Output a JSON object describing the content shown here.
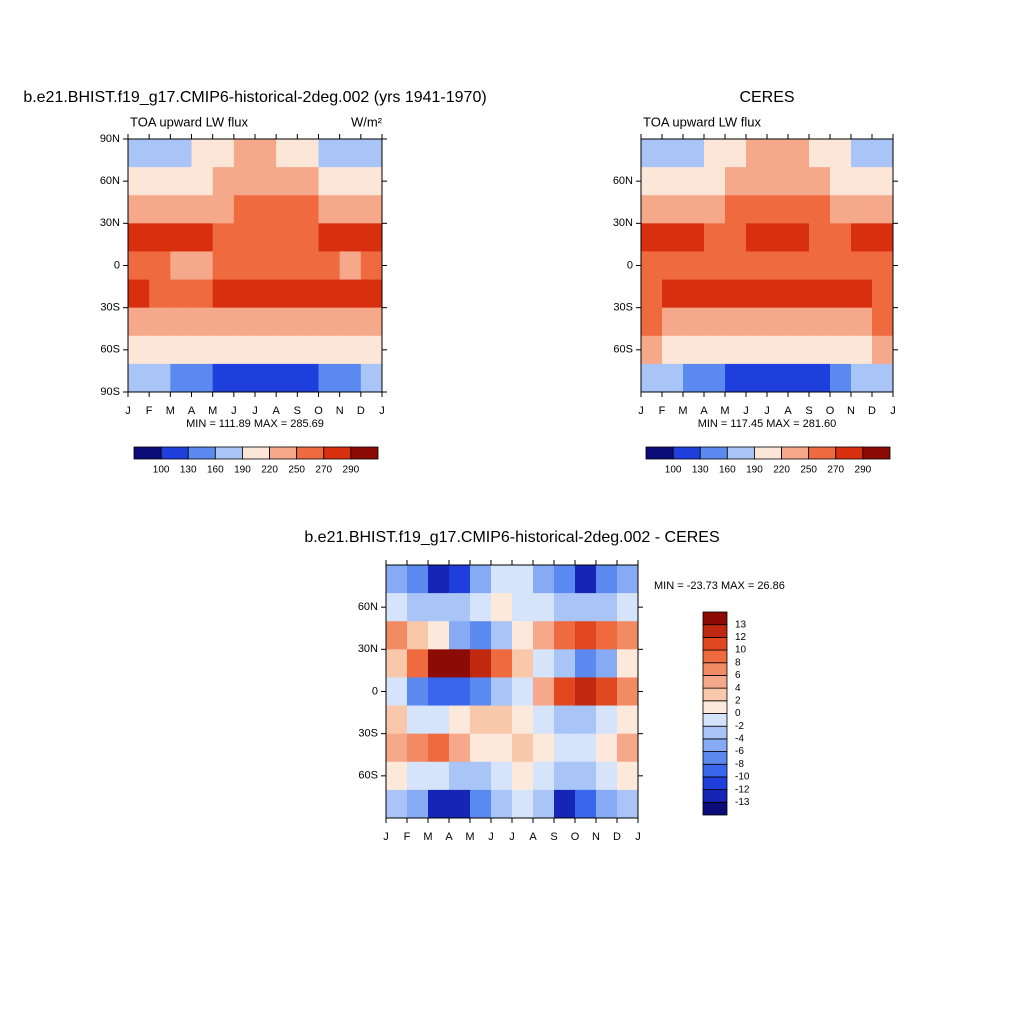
{
  "chart_data": [
    {
      "type": "heatmap",
      "title": "b.e21.BHIST.f19_g17.CMIP6-historical-2deg.002 (yrs 1941-1970)",
      "subtitle": "TOA upward LW flux",
      "units": "W/m²",
      "stats": "MIN = 111.89 MAX = 285.69",
      "categories": [
        "J",
        "F",
        "M",
        "A",
        "M",
        "J",
        "J",
        "A",
        "S",
        "O",
        "N",
        "D",
        "J"
      ],
      "y": [
        80,
        60,
        40,
        20,
        0,
        -20,
        -40,
        -60,
        -80
      ],
      "ylim": [
        -90,
        90
      ],
      "yticks": [
        {
          "value": 90,
          "label": "90N"
        },
        {
          "value": 60,
          "label": "60N"
        },
        {
          "value": 30,
          "label": "30N"
        },
        0,
        {
          "value": -30,
          "label": "30S"
        },
        {
          "value": -60,
          "label": "60S"
        },
        {
          "value": -90,
          "label": "90S"
        }
      ],
      "levels": [
        100,
        130,
        160,
        190,
        220,
        250,
        270,
        290
      ],
      "colors": [
        "#0b0b7a",
        "#1f3fdc",
        "#5a8af0",
        "#a9c4f7",
        "#fbe6d8",
        "#f6a98a",
        "#ef6b3f",
        "#d8300f",
        "#8c0c05"
      ],
      "colorbar": "horizontal",
      "values": [
        [
          165,
          160,
          175,
          195,
          210,
          220,
          220,
          215,
          200,
          185,
          170,
          165
        ],
        [
          190,
          190,
          200,
          210,
          225,
          235,
          235,
          230,
          220,
          205,
          195,
          190
        ],
        [
          225,
          225,
          230,
          235,
          245,
          255,
          260,
          258,
          250,
          240,
          232,
          228
        ],
        [
          275,
          285,
          283,
          275,
          265,
          262,
          262,
          265,
          268,
          270,
          272,
          272
        ],
        [
          250,
          255,
          245,
          245,
          250,
          255,
          255,
          258,
          255,
          250,
          248,
          250
        ],
        [
          270,
          265,
          262,
          268,
          275,
          282,
          285,
          285,
          280,
          275,
          272,
          270
        ],
        [
          245,
          243,
          240,
          238,
          236,
          235,
          236,
          238,
          240,
          242,
          244,
          245
        ],
        [
          215,
          210,
          205,
          200,
          195,
          190,
          190,
          192,
          196,
          200,
          206,
          212
        ],
        [
          180,
          170,
          150,
          130,
          118,
          113,
          112,
          115,
          120,
          135,
          155,
          172
        ]
      ]
    },
    {
      "type": "heatmap",
      "title": "CERES",
      "subtitle": "TOA upward LW flux",
      "stats": "MIN = 117.45 MAX = 281.60",
      "categories": [
        "J",
        "F",
        "M",
        "A",
        "M",
        "J",
        "J",
        "A",
        "S",
        "O",
        "N",
        "D",
        "J"
      ],
      "y": [
        80,
        60,
        40,
        20,
        0,
        -20,
        -40,
        -60,
        -80
      ],
      "ylim": [
        -90,
        90
      ],
      "yticks": [
        {
          "value": 60,
          "label": "60N"
        },
        {
          "value": 30,
          "label": "30N"
        },
        0,
        {
          "value": -30,
          "label": "30S"
        },
        {
          "value": -60,
          "label": "60S"
        }
      ],
      "levels": [
        100,
        130,
        160,
        190,
        220,
        250,
        270,
        290
      ],
      "colors": [
        "#0b0b7a",
        "#1f3fdc",
        "#5a8af0",
        "#a9c4f7",
        "#fbe6d8",
        "#f6a98a",
        "#ef6b3f",
        "#d8300f",
        "#8c0c05"
      ],
      "colorbar": "horizontal",
      "values": [
        [
          175,
          175,
          185,
          200,
          215,
          225,
          225,
          220,
          205,
          190,
          180,
          175
        ],
        [
          195,
          195,
          205,
          215,
          230,
          240,
          242,
          235,
          222,
          208,
          198,
          195
        ],
        [
          228,
          228,
          232,
          238,
          250,
          258,
          262,
          260,
          252,
          242,
          235,
          230
        ],
        [
          280,
          278,
          272,
          265,
          265,
          270,
          275,
          273,
          268,
          265,
          270,
          278
        ],
        [
          258,
          258,
          255,
          255,
          255,
          258,
          258,
          258,
          255,
          255,
          256,
          258
        ],
        [
          268,
          270,
          272,
          275,
          280,
          285,
          285,
          283,
          278,
          272,
          270,
          268
        ],
        [
          250,
          248,
          245,
          242,
          238,
          236,
          236,
          238,
          242,
          245,
          248,
          250
        ],
        [
          222,
          218,
          212,
          205,
          198,
          192,
          190,
          192,
          198,
          205,
          212,
          220
        ],
        [
          185,
          175,
          155,
          135,
          122,
          118,
          118,
          120,
          125,
          140,
          162,
          178
        ]
      ]
    },
    {
      "type": "heatmap",
      "title": "b.e21.BHIST.f19_g17.CMIP6-historical-2deg.002 - CERES",
      "stats": "MIN = -23.73 MAX =  26.86",
      "categories": [
        "J",
        "F",
        "M",
        "A",
        "M",
        "J",
        "J",
        "A",
        "S",
        "O",
        "N",
        "D",
        "J"
      ],
      "y": [
        80,
        60,
        40,
        20,
        0,
        -20,
        -40,
        -60,
        -80
      ],
      "ylim": [
        -90,
        90
      ],
      "yticks": [
        {
          "value": 60,
          "label": "60N"
        },
        {
          "value": 30,
          "label": "30N"
        },
        0,
        {
          "value": -30,
          "label": "30S"
        },
        {
          "value": -60,
          "label": "60S"
        }
      ],
      "levels": [
        -13,
        -12,
        -10,
        -8,
        -6,
        -4,
        -2,
        0,
        2,
        4,
        6,
        8,
        10,
        12,
        13
      ],
      "colors": [
        "#0b0b7a",
        "#1525b5",
        "#1f3fdc",
        "#3a66ee",
        "#5a8af0",
        "#86aaf4",
        "#a9c4f7",
        "#d5e3fb",
        "#fde9dc",
        "#f9c7aa",
        "#f6a98a",
        "#f28a63",
        "#ef6b3f",
        "#e2481f",
        "#c02810",
        "#8c0c05"
      ],
      "colorbar": "vertical",
      "values": [
        [
          -6,
          -8,
          -13,
          -12,
          -6,
          -2,
          -1,
          -6,
          -8,
          -13,
          -8,
          -6
        ],
        [
          -2,
          -3,
          -4,
          -4,
          -2,
          0,
          -1,
          -2,
          -4,
          -4,
          -3,
          -2
        ],
        [
          6,
          3,
          1,
          -6,
          -8,
          -3,
          1,
          4,
          8,
          10,
          8,
          6
        ],
        [
          3,
          8,
          13,
          13,
          12,
          8,
          2,
          -2,
          -4,
          -8,
          -6,
          0
        ],
        [
          -1,
          -8,
          -10,
          -10,
          -8,
          -4,
          -1,
          4,
          10,
          12,
          10,
          6
        ],
        [
          2,
          -1,
          -2,
          0,
          2,
          3,
          1,
          -1,
          -3,
          -4,
          -2,
          1
        ],
        [
          4,
          6,
          8,
          4,
          1,
          0,
          2,
          0,
          -2,
          -2,
          0,
          4
        ],
        [
          1,
          -2,
          -2,
          -4,
          -3,
          -1,
          0,
          -2,
          -4,
          -3,
          -1,
          1
        ],
        [
          -3,
          -6,
          -13,
          -13,
          -8,
          -4,
          -2,
          -4,
          -13,
          -10,
          -5,
          -3
        ]
      ]
    }
  ]
}
